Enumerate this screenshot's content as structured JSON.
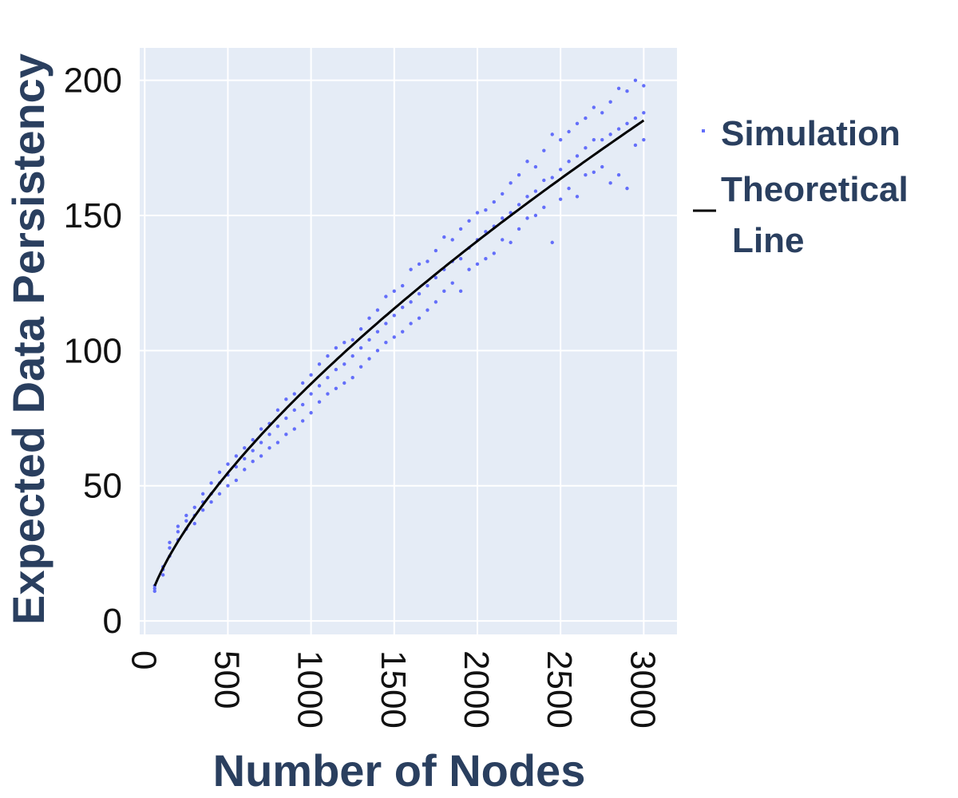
{
  "chart_data": {
    "type": "scatter",
    "xlabel": "Number of Nodes",
    "ylabel": "Expected Data Persistency",
    "xlim": [
      -30,
      3200
    ],
    "ylim": [
      -5,
      212
    ],
    "x_ticks": [
      0,
      500,
      1000,
      1500,
      2000,
      2500,
      3000
    ],
    "y_ticks": [
      0,
      50,
      100,
      150,
      200
    ],
    "x_tick_labels": [
      "0",
      "500",
      "1000",
      "1500",
      "2000",
      "2500",
      "3000"
    ],
    "y_tick_labels": [
      "0",
      "50",
      "100",
      "150",
      "200"
    ],
    "grid": true,
    "legend_position": "right",
    "series": [
      {
        "name": "Simulation",
        "kind": "scatter",
        "color": "#636efa",
        "points": [
          [
            60,
            11
          ],
          [
            60,
            12
          ],
          [
            60,
            13
          ],
          [
            110,
            17
          ],
          [
            110,
            19
          ],
          [
            110,
            20
          ],
          [
            150,
            24
          ],
          [
            150,
            27
          ],
          [
            150,
            29
          ],
          [
            200,
            30
          ],
          [
            200,
            33
          ],
          [
            200,
            35
          ],
          [
            250,
            34
          ],
          [
            250,
            37
          ],
          [
            250,
            39
          ],
          [
            300,
            36
          ],
          [
            300,
            39
          ],
          [
            300,
            42
          ],
          [
            350,
            41
          ],
          [
            350,
            44
          ],
          [
            350,
            47
          ],
          [
            400,
            44
          ],
          [
            400,
            47
          ],
          [
            400,
            51
          ],
          [
            450,
            47
          ],
          [
            450,
            51
          ],
          [
            450,
            55
          ],
          [
            500,
            50
          ],
          [
            500,
            54
          ],
          [
            500,
            58
          ],
          [
            550,
            52
          ],
          [
            550,
            57
          ],
          [
            550,
            61
          ],
          [
            600,
            56
          ],
          [
            600,
            60
          ],
          [
            600,
            64
          ],
          [
            650,
            59
          ],
          [
            650,
            63
          ],
          [
            650,
            67
          ],
          [
            700,
            61
          ],
          [
            700,
            66
          ],
          [
            700,
            71
          ],
          [
            750,
            64
          ],
          [
            750,
            69
          ],
          [
            750,
            73
          ],
          [
            800,
            66
          ],
          [
            800,
            72
          ],
          [
            800,
            78
          ],
          [
            850,
            69
          ],
          [
            850,
            75
          ],
          [
            850,
            82
          ],
          [
            900,
            71
          ],
          [
            900,
            78
          ],
          [
            900,
            84
          ],
          [
            950,
            74
          ],
          [
            950,
            80
          ],
          [
            950,
            88
          ],
          [
            1000,
            77
          ],
          [
            1000,
            84
          ],
          [
            1000,
            91
          ],
          [
            1050,
            81
          ],
          [
            1050,
            87
          ],
          [
            1050,
            95
          ],
          [
            1100,
            84
          ],
          [
            1100,
            90
          ],
          [
            1100,
            98
          ],
          [
            1150,
            86
          ],
          [
            1150,
            93
          ],
          [
            1150,
            101
          ],
          [
            1200,
            88
          ],
          [
            1200,
            95
          ],
          [
            1200,
            103
          ],
          [
            1250,
            90
          ],
          [
            1250,
            98
          ],
          [
            1250,
            104
          ],
          [
            1300,
            94
          ],
          [
            1300,
            101
          ],
          [
            1300,
            108
          ],
          [
            1350,
            97
          ],
          [
            1350,
            104
          ],
          [
            1350,
            112
          ],
          [
            1400,
            100
          ],
          [
            1400,
            107
          ],
          [
            1400,
            115
          ],
          [
            1450,
            103
          ],
          [
            1450,
            110
          ],
          [
            1450,
            120
          ],
          [
            1500,
            105
          ],
          [
            1500,
            113
          ],
          [
            1500,
            122
          ],
          [
            1550,
            107
          ],
          [
            1550,
            116
          ],
          [
            1550,
            124
          ],
          [
            1600,
            110
          ],
          [
            1600,
            118
          ],
          [
            1600,
            130
          ],
          [
            1650,
            112
          ],
          [
            1650,
            121
          ],
          [
            1650,
            132
          ],
          [
            1700,
            115
          ],
          [
            1700,
            124
          ],
          [
            1700,
            133
          ],
          [
            1750,
            118
          ],
          [
            1750,
            127
          ],
          [
            1750,
            137
          ],
          [
            1800,
            122
          ],
          [
            1800,
            130
          ],
          [
            1800,
            142
          ],
          [
            1850,
            125
          ],
          [
            1850,
            133
          ],
          [
            1850,
            141
          ],
          [
            1900,
            122
          ],
          [
            1900,
            134
          ],
          [
            1900,
            145
          ],
          [
            1950,
            130
          ],
          [
            1950,
            138
          ],
          [
            1950,
            148
          ],
          [
            2000,
            132
          ],
          [
            2000,
            141
          ],
          [
            2000,
            151
          ],
          [
            2050,
            134
          ],
          [
            2050,
            144
          ],
          [
            2050,
            152
          ],
          [
            2100,
            136
          ],
          [
            2100,
            146
          ],
          [
            2100,
            155
          ],
          [
            2150,
            141
          ],
          [
            2150,
            149
          ],
          [
            2150,
            158
          ],
          [
            2200,
            140
          ],
          [
            2200,
            151
          ],
          [
            2200,
            162
          ],
          [
            2250,
            145
          ],
          [
            2250,
            154
          ],
          [
            2250,
            165
          ],
          [
            2300,
            149
          ],
          [
            2300,
            157
          ],
          [
            2300,
            170
          ],
          [
            2350,
            150
          ],
          [
            2350,
            159
          ],
          [
            2350,
            168
          ],
          [
            2400,
            153
          ],
          [
            2400,
            163
          ],
          [
            2400,
            174
          ],
          [
            2450,
            140
          ],
          [
            2450,
            164
          ],
          [
            2450,
            180
          ],
          [
            2500,
            156
          ],
          [
            2500,
            167
          ],
          [
            2500,
            178
          ],
          [
            2550,
            160
          ],
          [
            2550,
            170
          ],
          [
            2550,
            181
          ],
          [
            2600,
            157
          ],
          [
            2600,
            172
          ],
          [
            2600,
            184
          ],
          [
            2650,
            165
          ],
          [
            2650,
            175
          ],
          [
            2650,
            186
          ],
          [
            2700,
            166
          ],
          [
            2700,
            178
          ],
          [
            2700,
            190
          ],
          [
            2750,
            168
          ],
          [
            2750,
            178
          ],
          [
            2750,
            188
          ],
          [
            2800,
            162
          ],
          [
            2800,
            180
          ],
          [
            2800,
            192
          ],
          [
            2850,
            165
          ],
          [
            2850,
            182
          ],
          [
            2850,
            197
          ],
          [
            2900,
            160
          ],
          [
            2900,
            184
          ],
          [
            2900,
            196
          ],
          [
            2950,
            176
          ],
          [
            2950,
            186
          ],
          [
            2950,
            200
          ],
          [
            3000,
            178
          ],
          [
            3000,
            188
          ],
          [
            3000,
            198
          ]
        ]
      },
      {
        "name": "Theoretical Line",
        "name_lines": [
          "Theoretical",
          "Line"
        ],
        "kind": "line",
        "color": "#000000",
        "formula": "y = 0.8 * x^0.68",
        "x_range": [
          60,
          3000
        ]
      }
    ]
  }
}
